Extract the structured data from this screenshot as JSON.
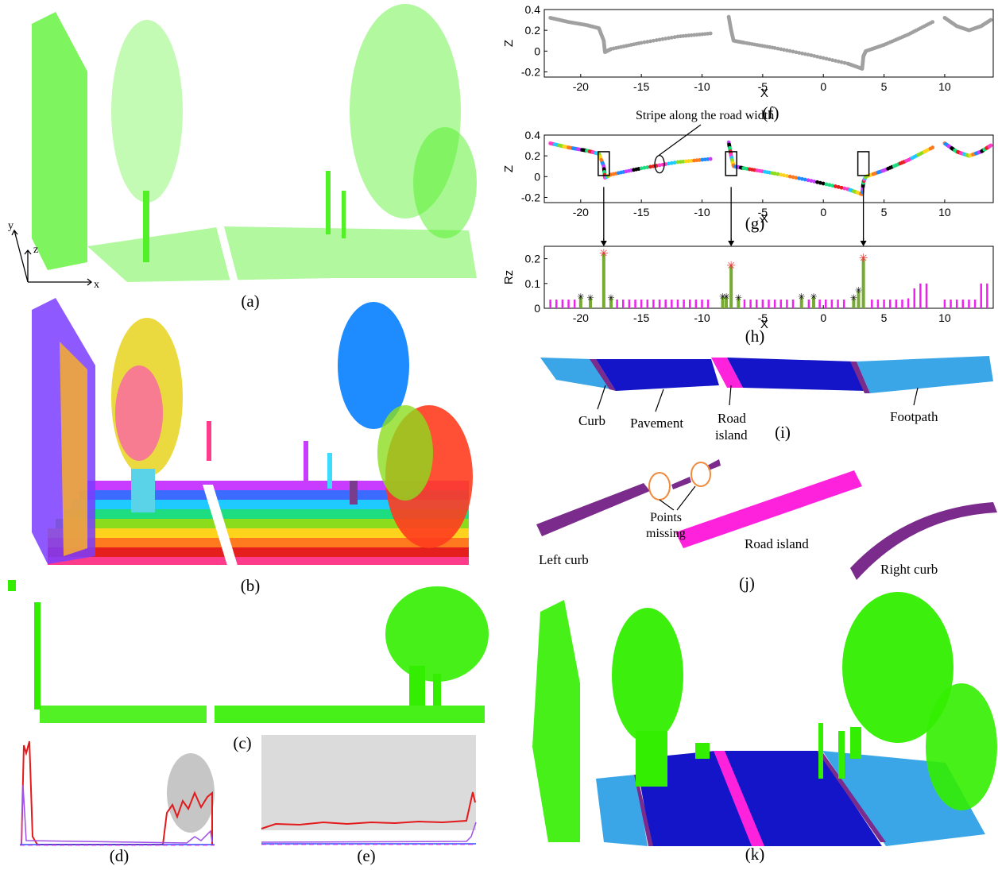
{
  "captions": {
    "a": "(a)",
    "b": "(b)",
    "c": "(c)",
    "d": "(d)",
    "e": "(e)",
    "f": "(f)",
    "g": "(g)",
    "h": "(h)",
    "i": "(i)",
    "j": "(j)",
    "k": "(k)"
  },
  "panel_a": {
    "axis_y": "y",
    "axis_z": "z",
    "axis_x": "x",
    "point_color": "#33ee00"
  },
  "panel_g": {
    "annotation": "Stripe along the road width"
  },
  "panel_i": {
    "labels": {
      "curb": "Curb",
      "pavement": "Pavement",
      "road_island_1": "Road",
      "road_island_2": "island",
      "footpath": "Footpath"
    },
    "colors": {
      "footpath": "#3aa6e8",
      "pavement": "#1414c8",
      "road_island": "#ff22dd",
      "curb": "#7a2b8c"
    }
  },
  "panel_j": {
    "labels": {
      "points_missing_1": "Points",
      "points_missing_2": "missing",
      "left_curb": "Left curb",
      "road_island": "Road island",
      "right_curb": "Right curb"
    },
    "colors": {
      "curb": "#7a2b8c",
      "road_island": "#ff22dd",
      "ellipse": "#f08a3c"
    }
  },
  "chart_data": [
    {
      "id": "f",
      "type": "scatter",
      "xlabel": "X",
      "ylabel": "Z",
      "xlim": [
        -23,
        14
      ],
      "ylim": [
        -0.25,
        0.4
      ],
      "xticks": [
        "-20",
        "-15",
        "-10",
        "-5",
        "0",
        "5",
        "10"
      ],
      "yticks": [
        "-0.2",
        "0",
        "0.2",
        "0.4"
      ],
      "color": "#a0a0a0",
      "series": [
        {
          "x": [
            -22.5,
            -21,
            -19.5,
            -18.5,
            -18.1,
            -18.0,
            -17.5,
            -15,
            -12,
            -9.3
          ],
          "y": [
            0.32,
            0.28,
            0.25,
            0.22,
            0.1,
            -0.01,
            0.02,
            0.08,
            0.14,
            0.17
          ]
        },
        {
          "x": [
            -7.8,
            -7.6,
            -7.4,
            -6.5,
            -4,
            -1,
            2,
            3.2,
            3.3,
            3.5,
            5,
            7,
            9
          ],
          "y": [
            0.33,
            0.2,
            0.1,
            0.08,
            0.03,
            -0.04,
            -0.12,
            -0.17,
            -0.05,
            -0.0,
            0.06,
            0.16,
            0.28
          ]
        },
        {
          "x": [
            10,
            11,
            12,
            13,
            13.8
          ],
          "y": [
            0.32,
            0.24,
            0.2,
            0.24,
            0.3
          ]
        }
      ]
    },
    {
      "id": "g",
      "type": "scatter",
      "xlabel": "X",
      "ylabel": "Z",
      "xlim": [
        -23,
        14
      ],
      "ylim": [
        -0.25,
        0.4
      ],
      "xticks": [
        "-20",
        "-15",
        "-10",
        "-5",
        "0",
        "5",
        "10"
      ],
      "yticks": [
        "-0.2",
        "0",
        "0.2",
        "0.4"
      ],
      "series": [
        {
          "x": [
            -22.5,
            -21,
            -19.5,
            -18.5,
            -18.1,
            -18.0,
            -17.5,
            -15,
            -12,
            -9.3
          ],
          "y": [
            0.32,
            0.28,
            0.25,
            0.22,
            0.1,
            -0.01,
            0.02,
            0.08,
            0.14,
            0.17
          ]
        },
        {
          "x": [
            -7.8,
            -7.6,
            -7.4,
            -6.5,
            -4,
            -1,
            2,
            3.2,
            3.3,
            3.5,
            5,
            7,
            9
          ],
          "y": [
            0.33,
            0.2,
            0.1,
            0.08,
            0.03,
            -0.04,
            -0.12,
            -0.17,
            -0.05,
            -0.0,
            0.06,
            0.16,
            0.28
          ]
        },
        {
          "x": [
            10,
            11,
            12,
            13,
            13.8
          ],
          "y": [
            0.32,
            0.24,
            0.2,
            0.24,
            0.3
          ]
        }
      ]
    },
    {
      "id": "h",
      "type": "bar",
      "xlabel": "X",
      "ylabel": "Rz",
      "xlim": [
        -23,
        14
      ],
      "ylim": [
        0,
        0.25
      ],
      "xticks": [
        "-20",
        "-15",
        "-10",
        "-5",
        "0",
        "5",
        "10"
      ],
      "yticks": [
        "0",
        "0.1",
        "0.2"
      ],
      "colors": {
        "normal": "#ee22ee",
        "candidate": "#77aa33",
        "peak_marker": "#e53030",
        "star_marker": "#000000"
      },
      "bars": [
        {
          "x": -22.5,
          "v": 0.035
        },
        {
          "x": -22,
          "v": 0.035
        },
        {
          "x": -21.5,
          "v": 0.035
        },
        {
          "x": -21,
          "v": 0.035
        },
        {
          "x": -20.5,
          "v": 0.035
        },
        {
          "x": -20,
          "v": 0.045,
          "c": 1
        },
        {
          "x": -19.2,
          "v": 0.04,
          "c": 1
        },
        {
          "x": -18.1,
          "v": 0.22,
          "c": 1,
          "peak": 1
        },
        {
          "x": -17.5,
          "v": 0.04,
          "c": 1
        },
        {
          "x": -17,
          "v": 0.035
        },
        {
          "x": -16.5,
          "v": 0.035
        },
        {
          "x": -16,
          "v": 0.035
        },
        {
          "x": -15.5,
          "v": 0.035
        },
        {
          "x": -15,
          "v": 0.035
        },
        {
          "x": -14.5,
          "v": 0.035
        },
        {
          "x": -14,
          "v": 0.035
        },
        {
          "x": -13.5,
          "v": 0.035
        },
        {
          "x": -13,
          "v": 0.035
        },
        {
          "x": -12.5,
          "v": 0.035
        },
        {
          "x": -12,
          "v": 0.035
        },
        {
          "x": -11.5,
          "v": 0.035
        },
        {
          "x": -11,
          "v": 0.035
        },
        {
          "x": -10.5,
          "v": 0.035
        },
        {
          "x": -10,
          "v": 0.035
        },
        {
          "x": -9.5,
          "v": 0.035
        },
        {
          "x": -8.3,
          "v": 0.045,
          "c": 1
        },
        {
          "x": -8.0,
          "v": 0.045,
          "c": 1
        },
        {
          "x": -7.6,
          "v": 0.17,
          "c": 1,
          "peak": 1
        },
        {
          "x": -7.0,
          "v": 0.04,
          "c": 1
        },
        {
          "x": -6.5,
          "v": 0.035
        },
        {
          "x": -6,
          "v": 0.035
        },
        {
          "x": -5.5,
          "v": 0.035
        },
        {
          "x": -5,
          "v": 0.035
        },
        {
          "x": -4.5,
          "v": 0.035
        },
        {
          "x": -4,
          "v": 0.035
        },
        {
          "x": -3.5,
          "v": 0.035
        },
        {
          "x": -3,
          "v": 0.035
        },
        {
          "x": -2.5,
          "v": 0.035
        },
        {
          "x": -1.8,
          "v": 0.045,
          "c": 1
        },
        {
          "x": -1.2,
          "v": 0.035
        },
        {
          "x": -0.8,
          "v": 0.045,
          "c": 1
        },
        {
          "x": -0.3,
          "v": 0.035
        },
        {
          "x": 0.2,
          "v": 0.035
        },
        {
          "x": 0.7,
          "v": 0.035
        },
        {
          "x": 1.2,
          "v": 0.035
        },
        {
          "x": 1.7,
          "v": 0.035
        },
        {
          "x": 2.5,
          "v": 0.04,
          "c": 1
        },
        {
          "x": 2.9,
          "v": 0.07,
          "c": 1
        },
        {
          "x": 3.3,
          "v": 0.2,
          "c": 1,
          "peak": 1
        },
        {
          "x": 4,
          "v": 0.035
        },
        {
          "x": 4.5,
          "v": 0.035
        },
        {
          "x": 5,
          "v": 0.035
        },
        {
          "x": 5.5,
          "v": 0.035
        },
        {
          "x": 6,
          "v": 0.035
        },
        {
          "x": 6.5,
          "v": 0.035
        },
        {
          "x": 7,
          "v": 0.04
        },
        {
          "x": 7.5,
          "v": 0.08
        },
        {
          "x": 8,
          "v": 0.1
        },
        {
          "x": 8.5,
          "v": 0.1
        },
        {
          "x": 10,
          "v": 0.035
        },
        {
          "x": 10.5,
          "v": 0.035
        },
        {
          "x": 11,
          "v": 0.035
        },
        {
          "x": 11.5,
          "v": 0.035
        },
        {
          "x": 12,
          "v": 0.035
        },
        {
          "x": 12.5,
          "v": 0.035
        },
        {
          "x": 13,
          "v": 0.1
        },
        {
          "x": 13.5,
          "v": 0.1
        }
      ]
    }
  ]
}
